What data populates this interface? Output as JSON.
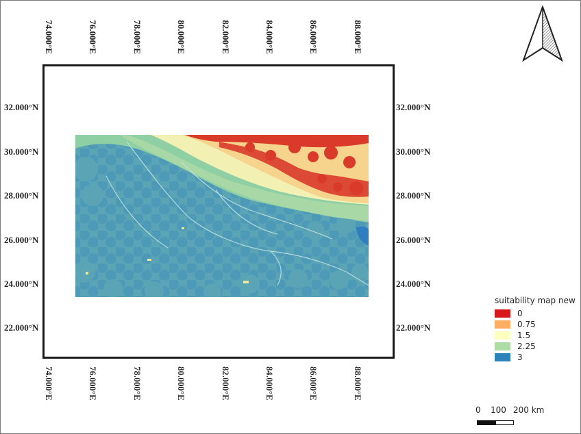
{
  "map": {
    "longitude_labels": [
      "74.000°E",
      "76.000°E",
      "78.000°E",
      "80.000°E",
      "82.000°E",
      "84.000°E",
      "86.000°E",
      "88.000°E"
    ],
    "latitude_labels": [
      "32.000°N",
      "30.000°N",
      "28.000°N",
      "26.000°N",
      "24.000°N",
      "22.000°N"
    ],
    "north_arrow_icon": "north-arrow-icon"
  },
  "legend": {
    "title": "suitability map new",
    "items": [
      {
        "label": "0",
        "color": "#d7191c"
      },
      {
        "label": "0.75",
        "color": "#fdae61"
      },
      {
        "label": "1.5",
        "color": "#ffffbf"
      },
      {
        "label": "2.25",
        "color": "#abdda4"
      },
      {
        "label": "3",
        "color": "#2b83ba"
      }
    ]
  },
  "scale_bar": {
    "labels": [
      "0",
      "100",
      "200 km"
    ]
  }
}
